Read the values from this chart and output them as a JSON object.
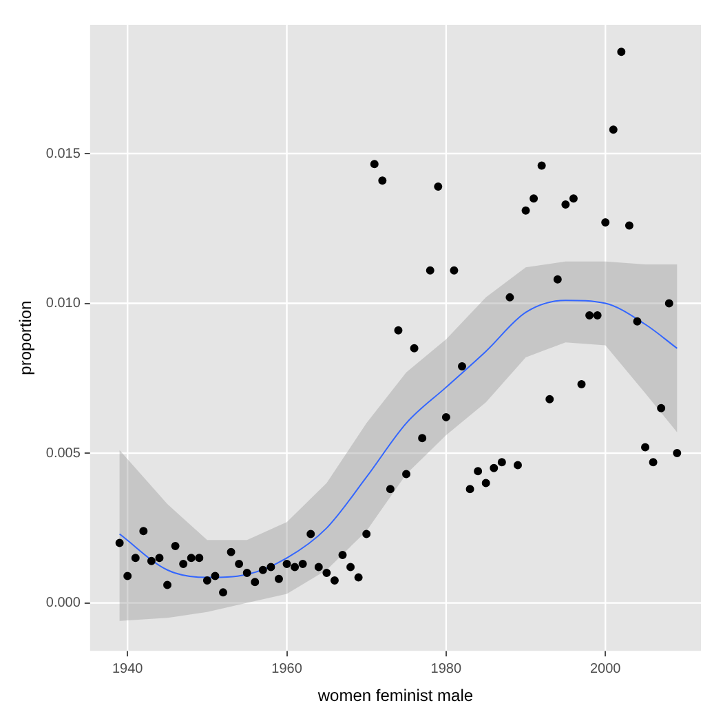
{
  "chart_data": {
    "type": "scatter",
    "xlabel": "women feminist male",
    "ylabel": "proportion",
    "xlim": [
      1935.3,
      2012
    ],
    "ylim": [
      -0.0016,
      0.0193
    ],
    "xticks": [
      1940,
      1960,
      1980,
      2000
    ],
    "yticks": [
      {
        "value": 0,
        "label": "0.000"
      },
      0.005,
      {
        "value": 0.01,
        "label": "0.010"
      },
      0.015
    ],
    "grid": true,
    "legend": false,
    "series": [
      {
        "marker": "circle",
        "color": "#000000",
        "x": [
          1939,
          1940,
          1941,
          1942,
          1943,
          1944,
          1945,
          1946,
          1947,
          1948,
          1949,
          1950,
          1951,
          1952,
          1953,
          1954,
          1955,
          1956,
          1957,
          1958,
          1959,
          1960,
          1961,
          1962,
          1963,
          1964,
          1965,
          1966,
          1967,
          1968,
          1969,
          1970,
          1971,
          1972,
          1973,
          1974,
          1975,
          1976,
          1977,
          1978,
          1979,
          1980,
          1981,
          1982,
          1983,
          1984,
          1985,
          1986,
          1987,
          1988,
          1989,
          1990,
          1991,
          1992,
          1993,
          1994,
          1995,
          1996,
          1997,
          1998,
          1999,
          2000,
          2001,
          2002,
          2003,
          2004,
          2005,
          2006,
          2007,
          2008,
          2009
        ],
        "values": [
          0.002,
          0.0009,
          0.0015,
          0.0024,
          0.0014,
          0.0015,
          0.0006,
          0.0019,
          0.0013,
          0.0015,
          0.0015,
          0.00075,
          0.0009,
          0.00035,
          0.0017,
          0.0013,
          0.001,
          0.0007,
          0.0011,
          0.0012,
          0.0008,
          0.0013,
          0.0012,
          0.0013,
          0.0023,
          0.0012,
          0.001,
          0.00075,
          0.0016,
          0.0012,
          0.00085,
          0.0023,
          0.01465,
          0.0141,
          0.0038,
          0.0091,
          0.0043,
          0.0085,
          0.0055,
          0.0111,
          0.0139,
          0.0062,
          0.0111,
          0.0079,
          0.0038,
          0.0044,
          0.004,
          0.0045,
          0.0047,
          0.0102,
          0.0046,
          0.0131,
          0.0135,
          0.0146,
          0.0068,
          0.0108,
          0.0133,
          0.0135,
          0.0073,
          0.0096,
          0.0096,
          0.0127,
          0.0158,
          0.0184,
          0.0126,
          0.0094,
          0.0052,
          0.0047,
          0.0065,
          0.01,
          0.005
        ]
      },
      {
        "type": "line",
        "marker": "none",
        "color": "#3366ff",
        "x": [
          1939,
          1945,
          1950,
          1955,
          1960,
          1965,
          1970,
          1975,
          1980,
          1985,
          1990,
          1995,
          2000,
          2005,
          2009
        ],
        "values": [
          0.0023,
          0.0011,
          0.00085,
          0.00095,
          0.0015,
          0.0025,
          0.0042,
          0.006,
          0.0072,
          0.0084,
          0.0097,
          0.0101,
          0.01,
          0.0093,
          0.0085
        ],
        "lower": [
          -0.0006,
          -0.0005,
          -0.0003,
          0.0,
          0.0003,
          0.0011,
          0.0024,
          0.0043,
          0.0056,
          0.0067,
          0.0082,
          0.0087,
          0.0086,
          0.007,
          0.0057
        ],
        "upper": [
          0.0051,
          0.0033,
          0.0021,
          0.0021,
          0.0027,
          0.004,
          0.006,
          0.0077,
          0.0088,
          0.0102,
          0.0112,
          0.0114,
          0.0114,
          0.0113,
          0.0113
        ]
      }
    ]
  }
}
